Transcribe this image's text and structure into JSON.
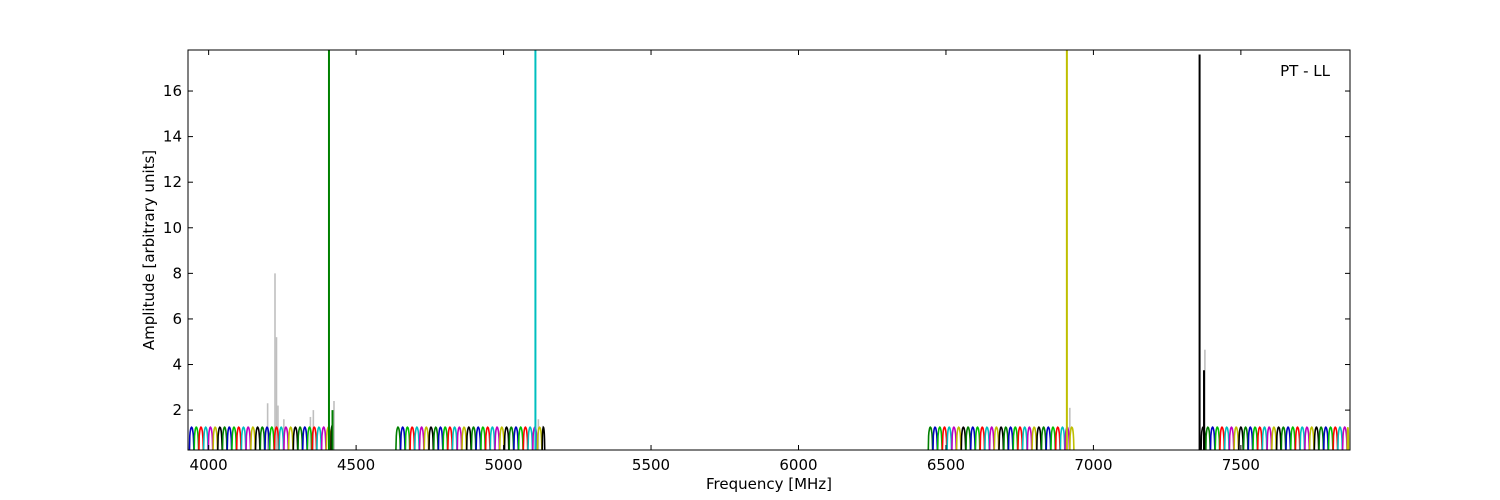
{
  "chart_data": {
    "type": "line",
    "annotation": "PT - LL",
    "xlabel": "Frequency [MHz]",
    "ylabel": "Amplitude [arbitrary units]",
    "xlim": [
      3930,
      7870
    ],
    "ylim": [
      0.25,
      17.8
    ],
    "xticks": [
      4000,
      4500,
      5000,
      5500,
      6000,
      6500,
      7000,
      7500
    ],
    "yticks": [
      2,
      4,
      6,
      8,
      10,
      12,
      14,
      16
    ],
    "colors": {
      "background_trace": "#bfbfbf",
      "palette": [
        "#0000bf",
        "#00bf00",
        "#ff0000",
        "#00bfbf",
        "#bf00bf",
        "#bfbf00",
        "#000000",
        "#008000"
      ]
    },
    "bands": [
      {
        "start": 3935,
        "end": 4420,
        "channel_width": 16
      },
      {
        "start": 4635,
        "end": 5140,
        "channel_width": 16
      },
      {
        "start": 6440,
        "end": 6935,
        "channel_width": 16
      },
      {
        "start": 7365,
        "end": 7865,
        "channel_width": 16
      }
    ],
    "channel_level": 1.25,
    "spikes": [
      {
        "x": 4408,
        "y": 17.8,
        "color": "#008000"
      },
      {
        "x": 4420,
        "y": 2.0,
        "color": "#008000"
      },
      {
        "x": 5108,
        "y": 17.8,
        "color": "#00bfbf"
      },
      {
        "x": 6910,
        "y": 17.8,
        "color": "#bfbf00"
      },
      {
        "x": 7360,
        "y": 17.6,
        "color": "#000000"
      },
      {
        "x": 7375,
        "y": 3.75,
        "color": "#000000"
      }
    ],
    "background_spikes": [
      {
        "x": 4200,
        "y": 2.3
      },
      {
        "x": 4225,
        "y": 8.0
      },
      {
        "x": 4230,
        "y": 5.2
      },
      {
        "x": 4235,
        "y": 2.2
      },
      {
        "x": 4255,
        "y": 1.6
      },
      {
        "x": 4345,
        "y": 1.7
      },
      {
        "x": 4355,
        "y": 2.0
      },
      {
        "x": 4425,
        "y": 2.4
      },
      {
        "x": 5118,
        "y": 1.6
      },
      {
        "x": 6920,
        "y": 2.1
      },
      {
        "x": 7378,
        "y": 4.65
      }
    ]
  }
}
